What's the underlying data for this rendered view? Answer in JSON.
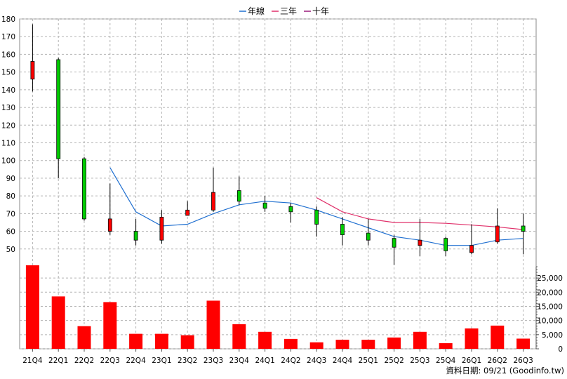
{
  "chart_data": {
    "type": "candlestick+bar",
    "legend": [
      {
        "name": "年線",
        "color": "#1f6fd0"
      },
      {
        "name": "三年",
        "color": "#e0306a"
      },
      {
        "name": "十年",
        "color": "#9b1a7a"
      }
    ],
    "categories": [
      "21Q4",
      "22Q1",
      "22Q2",
      "22Q3",
      "22Q4",
      "23Q1",
      "23Q2",
      "23Q3",
      "23Q4",
      "24Q1",
      "24Q2",
      "24Q3",
      "24Q4",
      "25Q1",
      "25Q2",
      "25Q3",
      "25Q4",
      "26Q1",
      "26Q2",
      "26Q3"
    ],
    "price_axis": {
      "ticks": [
        "180",
        "170",
        "160",
        "150",
        "140",
        "130",
        "120",
        "110",
        "100",
        "90",
        "80",
        "70",
        "60",
        "50"
      ],
      "ylim": [
        40,
        180
      ]
    },
    "volume_axis": {
      "ticks": [
        "25,000",
        "20,000",
        "15,000",
        "10,000",
        "5,000",
        "0"
      ],
      "ylim": [
        0,
        29000
      ]
    },
    "candles": [
      {
        "open": 146,
        "close": 156,
        "high": 177,
        "low": 139
      },
      {
        "open": 157,
        "close": 101,
        "high": 158,
        "low": 90
      },
      {
        "open": 101,
        "close": 67,
        "high": 102,
        "low": 66
      },
      {
        "open": 60,
        "close": 67,
        "high": 87,
        "low": 58
      },
      {
        "open": 60,
        "close": 55,
        "high": 67,
        "low": 52
      },
      {
        "open": 55,
        "close": 68,
        "high": 72,
        "low": 53
      },
      {
        "open": 69,
        "close": 72,
        "high": 77,
        "low": 69
      },
      {
        "open": 72,
        "close": 82,
        "high": 96,
        "low": 71
      },
      {
        "open": 83,
        "close": 77,
        "high": 91,
        "low": 75
      },
      {
        "open": 76,
        "close": 73,
        "high": 80,
        "low": 71
      },
      {
        "open": 74,
        "close": 71,
        "high": 76,
        "low": 65
      },
      {
        "open": 72,
        "close": 64,
        "high": 74,
        "low": 57
      },
      {
        "open": 64,
        "close": 58,
        "high": 68,
        "low": 52
      },
      {
        "open": 59,
        "close": 55,
        "high": 67,
        "low": 52
      },
      {
        "open": 56,
        "close": 51,
        "high": 58,
        "low": 41
      },
      {
        "open": 52,
        "close": 55,
        "high": 67,
        "low": 46
      },
      {
        "open": 56,
        "close": 49,
        "high": 57,
        "low": 46
      },
      {
        "open": 48,
        "close": 52,
        "high": 64,
        "low": 47
      },
      {
        "open": 54,
        "close": 63,
        "high": 73,
        "low": 53
      },
      {
        "open": 63,
        "close": 60,
        "high": 70,
        "low": 47
      }
    ],
    "line_yearly": [
      null,
      null,
      null,
      96,
      71,
      63,
      64,
      70,
      75,
      77,
      76,
      72,
      67,
      62,
      57,
      55,
      52,
      52,
      55,
      56
    ],
    "line_3yr": [
      null,
      null,
      null,
      null,
      null,
      null,
      null,
      null,
      null,
      null,
      null,
      79,
      71,
      67,
      65,
      65,
      64.5,
      63.5,
      62.5,
      61
    ],
    "volume": [
      29500,
      18500,
      8000,
      16500,
      5300,
      5300,
      4800,
      17000,
      8700,
      6000,
      3500,
      2300,
      3200,
      3200,
      4000,
      6000,
      2000,
      7200,
      8200,
      3600
    ],
    "footer": "資料日期: 09/21  (Goodinfo.tw)"
  }
}
